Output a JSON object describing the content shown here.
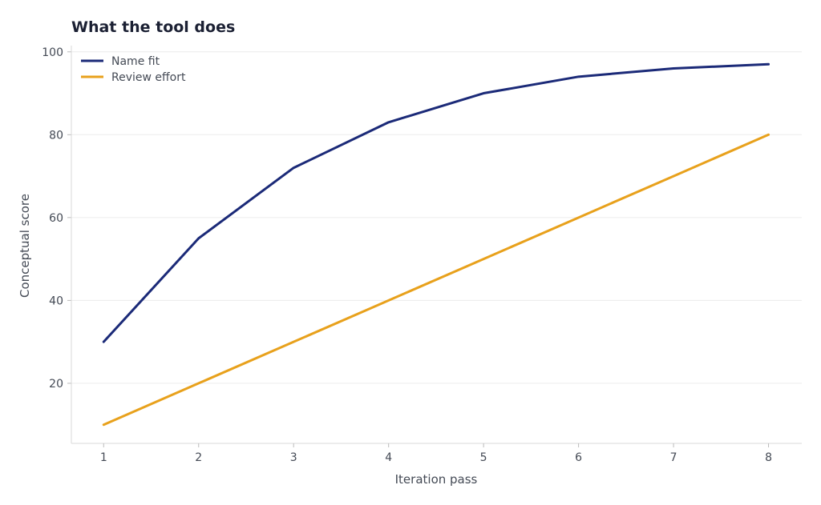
{
  "chart_data": {
    "type": "line",
    "title": "What the tool does",
    "xlabel": "Iteration pass",
    "ylabel": "Conceptual score",
    "x": [
      1,
      2,
      3,
      4,
      5,
      6,
      7,
      8
    ],
    "xlim": [
      0.66,
      8.35
    ],
    "ylim": [
      5.5,
      101.5
    ],
    "xticks": [
      1,
      2,
      3,
      4,
      5,
      6,
      7,
      8
    ],
    "yticks": [
      20,
      40,
      60,
      80,
      100
    ],
    "grid": "horizontal",
    "legend_position": "top-left",
    "series": [
      {
        "name": "Name fit",
        "color": "#1b2a78",
        "values": [
          30,
          55,
          72,
          83,
          90,
          94,
          96,
          97
        ]
      },
      {
        "name": "Review effort",
        "color": "#e8a11c",
        "values": [
          10,
          20,
          30,
          40,
          50,
          60,
          70,
          80
        ]
      }
    ]
  }
}
